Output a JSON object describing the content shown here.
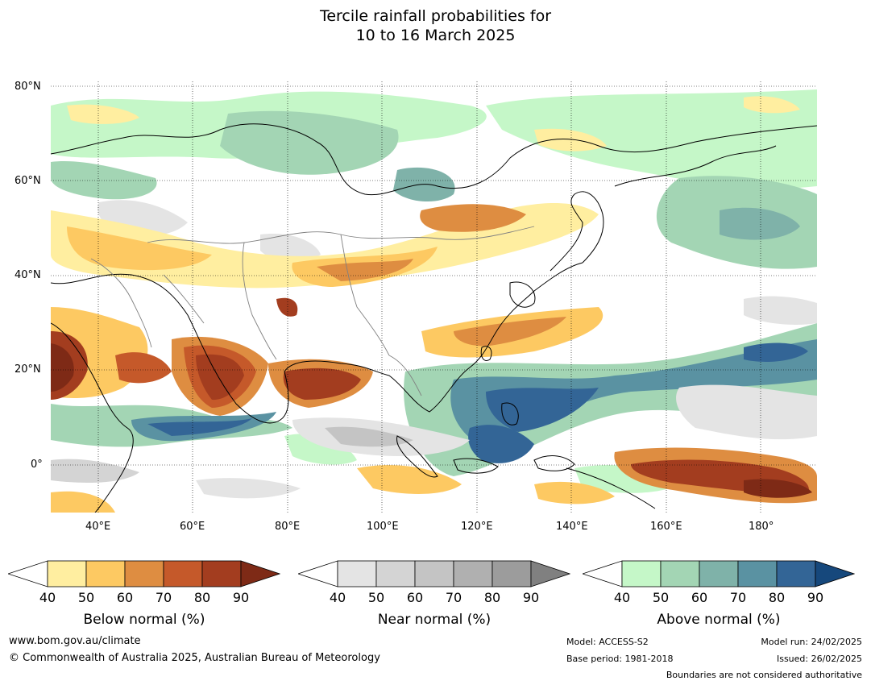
{
  "title": {
    "line1": "Tercile rainfall probabilities for",
    "line2": "10 to 16 March 2025"
  },
  "map": {
    "lat_labels": [
      "80°N",
      "60°N",
      "40°N",
      "20°N",
      "0°"
    ],
    "lon_labels": [
      "40°E",
      "60°E",
      "80°E",
      "100°E",
      "120°E",
      "140°E",
      "160°E",
      "180°"
    ],
    "categories": {
      "below": [
        "#ffeea0",
        "#fdc962",
        "#de8d41",
        "#c5592a",
        "#a33d1f",
        "#7e2a16"
      ],
      "near": [
        "#e4e4e4",
        "#d4d4d4",
        "#c4c4c4",
        "#b0b0b0",
        "#9c9c9c",
        "#808080"
      ],
      "above": [
        "#c5f7c8",
        "#a3d5b4",
        "#7fb2a9",
        "#5a92a2",
        "#336596",
        "#16487c"
      ]
    }
  },
  "colorbars": [
    {
      "id": "below",
      "title": "Below normal (%)",
      "ticks": [
        "40",
        "50",
        "60",
        "70",
        "80",
        "90"
      ]
    },
    {
      "id": "near",
      "title": "Near normal (%)",
      "ticks": [
        "40",
        "50",
        "60",
        "70",
        "80",
        "90"
      ]
    },
    {
      "id": "above",
      "title": "Above normal (%)",
      "ticks": [
        "40",
        "50",
        "60",
        "70",
        "80",
        "90"
      ]
    }
  ],
  "footer": {
    "website": "www.bom.gov.au/climate",
    "copyright": "© Commonwealth of Australia 2025, Australian Bureau of Meteorology",
    "model": "Model: ACCESS-S2",
    "base_period": "Base period: 1981-2018",
    "model_run": "Model run: 24/02/2025",
    "issued": "Issued: 26/02/2025",
    "disclaimer": "Boundaries are not considered authoritative"
  }
}
